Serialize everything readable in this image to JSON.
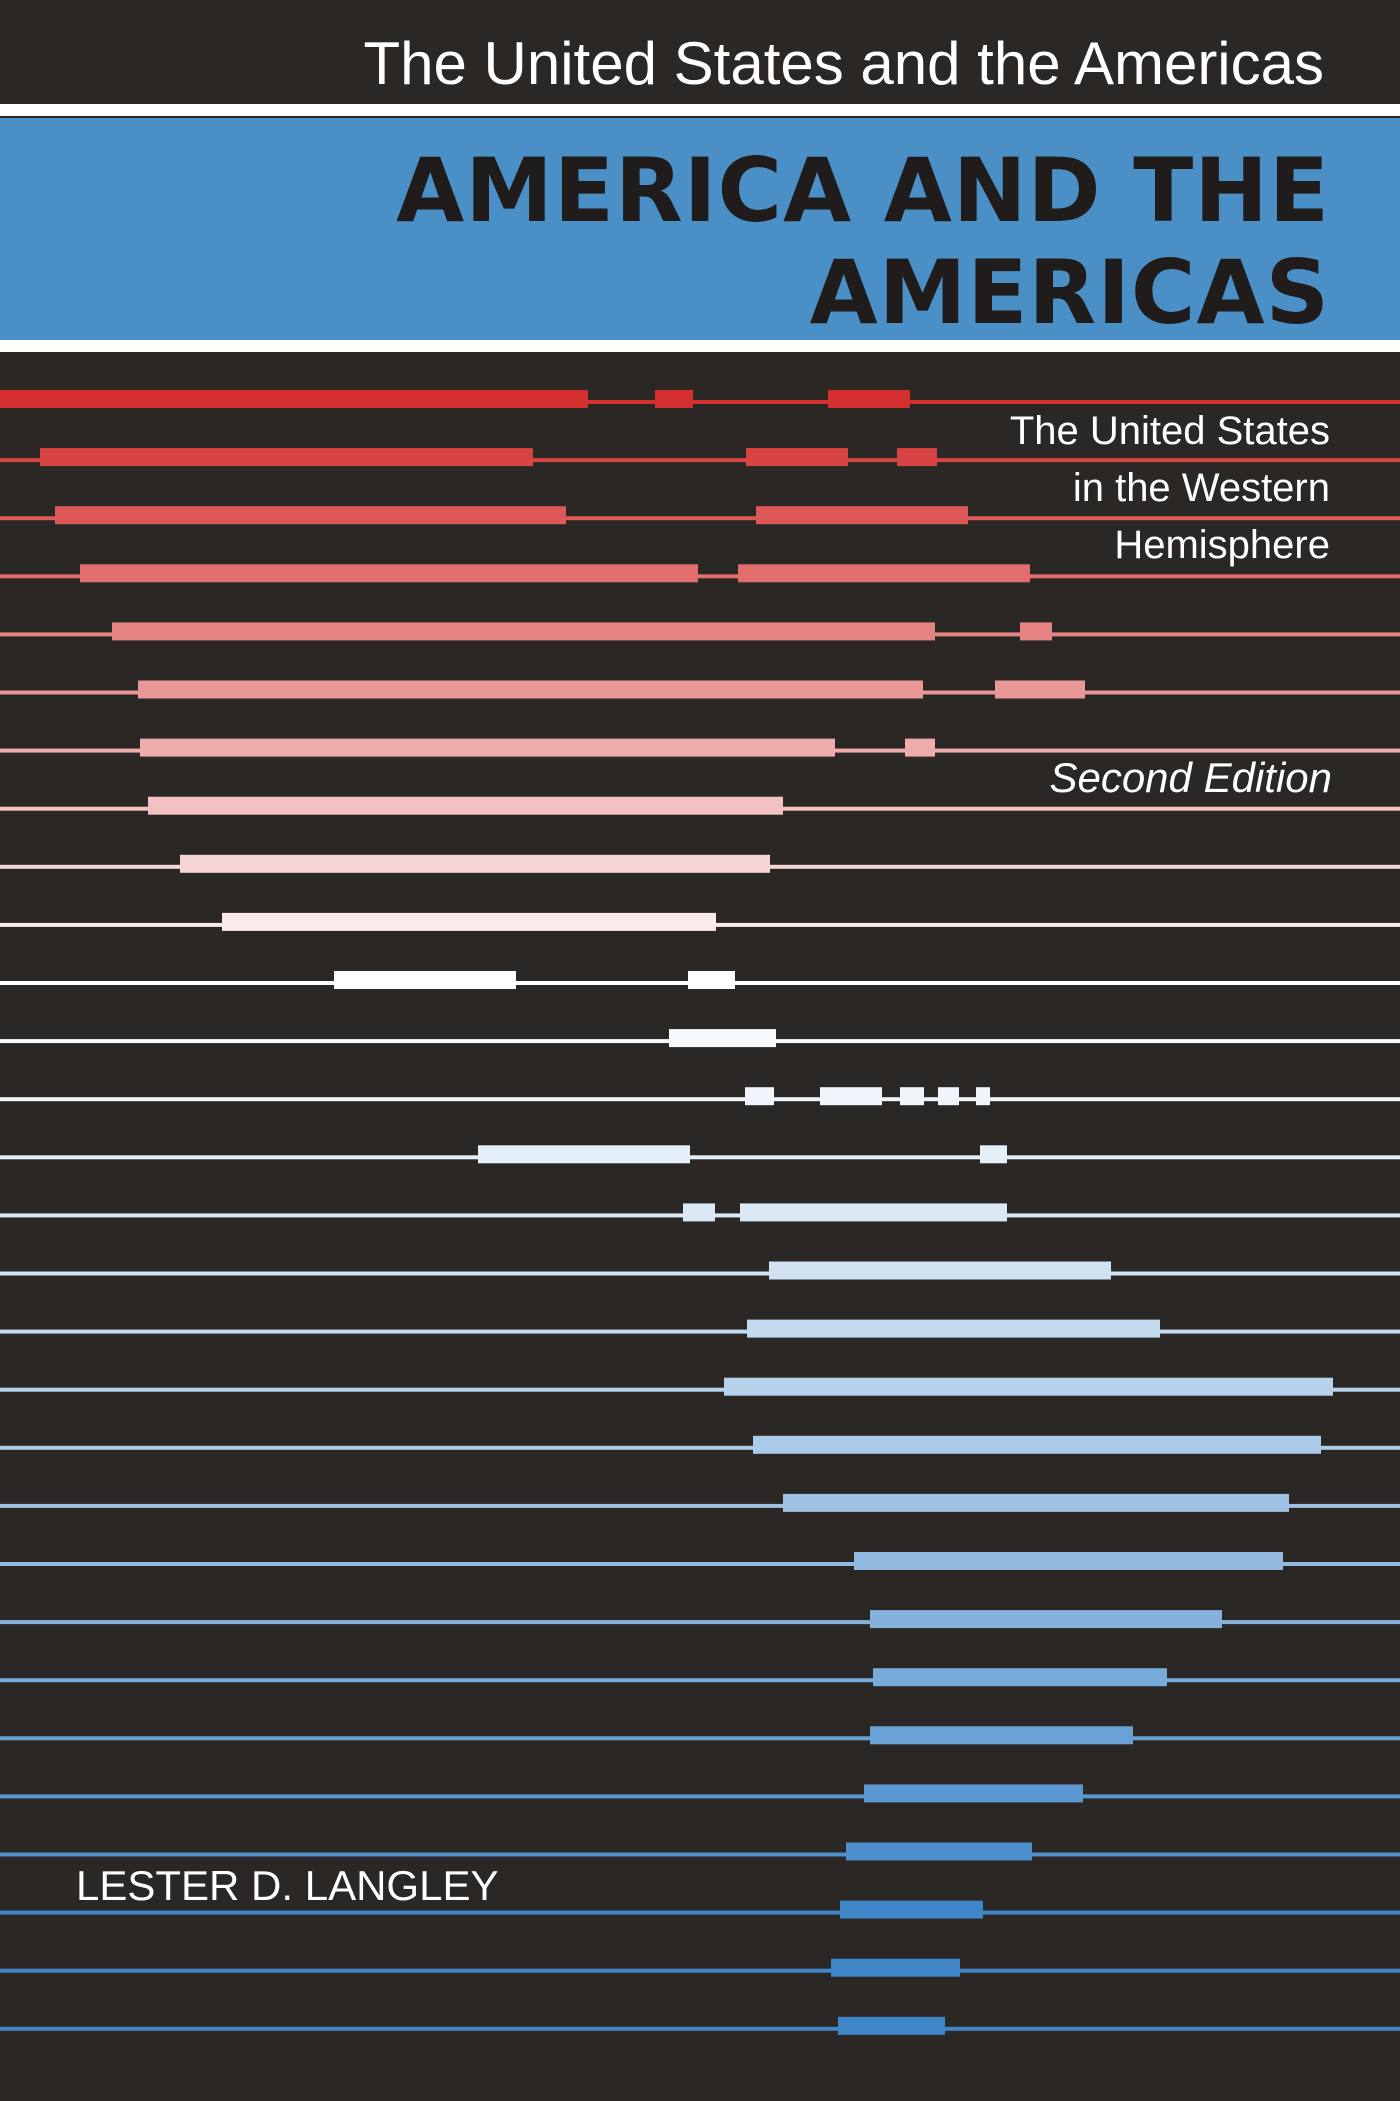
{
  "cover": {
    "series": "The United States and the Americas",
    "title_line_1": "AMERICA AND THE",
    "title_line_2": "AMERICAS",
    "subtitle_line_1": "The United States",
    "subtitle_line_2": "in the Western",
    "subtitle_line_3": "Hemisphere",
    "edition": "Second Edition",
    "author": "LESTER D. LANGLEY"
  },
  "colors": {
    "background": "#2b2725",
    "band_blue": "#4b8fc7",
    "title_text": "#1f1c1b",
    "white": "#ffffff",
    "stripe_red": "#d42f2f",
    "stripe_blue": "#3f86c9"
  },
  "artwork": {
    "name": "striped-map-of-the-americas",
    "description_colors": [
      "#d42f2f",
      "#ffffff",
      "#3f86c9"
    ]
  }
}
